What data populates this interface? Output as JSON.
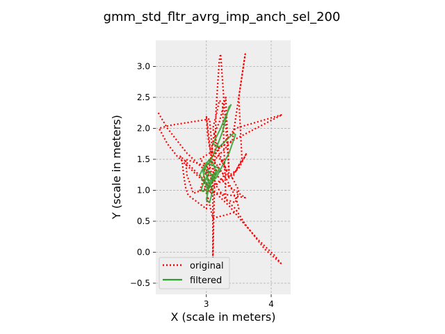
{
  "chart_data": {
    "type": "line",
    "title": "gmm_std_fltr_avrg_imp_anch_sel_200",
    "xlabel": "X (scale in meters)",
    "ylabel": "Y (scale in meters)",
    "xlim": [
      2.22,
      4.3
    ],
    "ylim": [
      -0.68,
      3.42
    ],
    "xticks": [
      3,
      4
    ],
    "yticks": [
      -0.5,
      0.0,
      0.5,
      1.0,
      1.5,
      2.0,
      2.5,
      3.0
    ],
    "xtick_labels": [
      "3",
      "4"
    ],
    "ytick_labels": [
      "−0.5",
      "0.0",
      "0.5",
      "1.0",
      "1.5",
      "2.0",
      "2.5",
      "3.0"
    ],
    "grid": true,
    "legend_position": "lower-left",
    "series": [
      {
        "name": "original",
        "color": "#ff0000",
        "style": "dotted",
        "x": [
          2.26,
          2.4,
          2.55,
          2.7,
          2.85,
          3.0,
          3.1,
          3.2,
          3.3,
          3.45,
          3.6,
          3.75,
          3.9,
          4.15,
          4.05,
          3.8,
          3.55,
          3.35,
          3.15,
          3.0,
          2.85,
          2.7,
          2.55,
          2.4,
          2.27,
          2.45,
          3.05,
          3.1,
          3.45,
          4.17,
          3.4,
          3.05,
          2.9,
          3.0,
          3.05,
          3.08,
          3.1,
          3.1,
          3.15,
          3.2,
          3.22,
          3.35,
          3.3,
          3.25,
          3.2,
          3.12,
          3.08,
          3.05,
          3.4,
          3.6,
          3.5,
          3.55,
          3.45,
          3.35,
          3.28,
          3.15,
          3.05,
          3.0,
          2.9,
          3.6,
          3.3,
          3.1,
          3.0,
          3.02,
          3.05,
          3.1,
          3.3,
          3.4,
          3.48,
          3.5,
          3.45,
          3.3,
          3.1,
          3.02,
          3.0,
          2.72,
          2.68,
          2.65,
          2.63,
          2.6,
          2.98,
          3.05,
          2.8,
          2.7,
          2.68,
          3.1,
          3.2,
          3.3,
          3.4,
          3.5,
          3.6,
          3.62,
          3.5,
          3.3,
          3.1,
          3.05,
          3.0,
          2.95,
          3.0,
          3.05,
          3.08,
          3.1,
          3.2,
          3.25,
          3.3,
          3.4,
          3.5,
          3.45,
          3.3,
          3.25,
          3.2,
          3.15,
          3.1,
          3.15,
          3.2,
          3.25,
          3.3,
          3.25,
          3.2,
          3.15,
          3.1,
          3.05,
          3.0
        ],
        "y": [
          2.25,
          2.0,
          1.8,
          1.6,
          1.45,
          1.3,
          1.15,
          1.0,
          0.85,
          0.7,
          0.45,
          0.25,
          0.05,
          -0.18,
          -0.05,
          0.2,
          0.5,
          0.75,
          0.95,
          1.1,
          1.25,
          1.4,
          1.55,
          1.75,
          2.0,
          2.05,
          2.15,
          1.55,
          2.0,
          2.22,
          1.8,
          1.6,
          1.5,
          1.4,
          1.3,
          1.2,
          1.1,
          -0.15,
          2.3,
          3.1,
          3.2,
          1.3,
          2.5,
          2.3,
          2.1,
          1.9,
          1.6,
          1.4,
          1.8,
          3.2,
          2.5,
          1.5,
          1.3,
          1.2,
          1.4,
          1.6,
          1.5,
          1.3,
          1.0,
          0.88,
          1.1,
          1.3,
          2.2,
          1.9,
          1.7,
          1.5,
          1.2,
          1.0,
          0.8,
          0.7,
          0.65,
          0.6,
          0.55,
          0.9,
          0.7,
          0.92,
          1.05,
          1.25,
          1.45,
          1.55,
          1.15,
          1.05,
          0.95,
          1.25,
          1.5,
          1.35,
          1.3,
          1.25,
          1.2,
          1.4,
          1.55,
          1.6,
          1.35,
          1.2,
          1.05,
          1.0,
          0.95,
          1.2,
          1.3,
          1.1,
          0.95,
          1.25,
          1.4,
          1.5,
          1.35,
          1.2,
          1.0,
          0.8,
          0.85,
          2.4,
          2.45,
          2.2,
          2.0,
          1.8,
          1.6,
          1.45,
          1.3,
          1.2,
          1.15,
          1.1,
          1.25,
          1.35,
          1.2
        ]
      },
      {
        "name": "filtered",
        "color": "#2ca02c",
        "style": "solid",
        "x": [
          3.0,
          2.95,
          2.92,
          2.95,
          3.05,
          3.1,
          3.05,
          2.98,
          3.0,
          3.05,
          3.12,
          3.18,
          3.25,
          3.3,
          3.35,
          3.38,
          3.3,
          3.22,
          3.15,
          3.1,
          3.2,
          3.3,
          3.42,
          3.45,
          3.35,
          3.25,
          3.2,
          3.15,
          3.1,
          3.05,
          3.02,
          3.0,
          3.05,
          3.12,
          3.2,
          3.1,
          3.0,
          2.95,
          2.9,
          2.95,
          3.05,
          3.1,
          3.15,
          3.1,
          3.05,
          3.0,
          3.05,
          3.1,
          3.0,
          3.05,
          3.08,
          3.1,
          3.0,
          2.95,
          2.98,
          3.05,
          3.1,
          3.15,
          3.1,
          3.04,
          3.0,
          2.95,
          2.92
        ],
        "y": [
          1.2,
          1.1,
          1.0,
          0.98,
          1.05,
          1.2,
          1.3,
          1.35,
          1.4,
          1.45,
          1.6,
          1.75,
          1.95,
          2.15,
          2.35,
          2.38,
          2.2,
          2.0,
          1.85,
          1.75,
          1.7,
          1.8,
          1.92,
          1.9,
          1.6,
          1.4,
          1.3,
          1.2,
          1.15,
          1.1,
          1.0,
          0.95,
          1.05,
          1.2,
          1.35,
          1.4,
          1.45,
          1.35,
          1.25,
          1.15,
          1.1,
          1.25,
          1.3,
          1.2,
          1.1,
          0.85,
          0.8,
          1.0,
          1.2,
          1.3,
          1.25,
          1.15,
          1.05,
          1.3,
          1.4,
          1.5,
          1.45,
          1.3,
          1.2,
          1.15,
          1.25,
          1.35,
          1.3
        ]
      }
    ]
  }
}
